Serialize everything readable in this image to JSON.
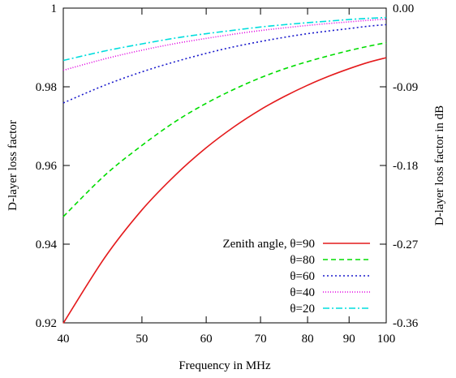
{
  "chart_data": {
    "type": "line",
    "xlabel": "Frequency in MHz",
    "ylabel": "D-layer loss factor",
    "y2label": "D-layer loss factor in dB",
    "xscale": "log",
    "xlim": [
      40,
      100
    ],
    "ylim": [
      0.92,
      1.0
    ],
    "y2lim": [
      -0.36,
      0.0
    ],
    "xticks": [
      40,
      50,
      60,
      70,
      80,
      90,
      100
    ],
    "yticks": [
      0.92,
      0.94,
      0.96,
      0.98,
      1.0
    ],
    "ytick_labels": [
      "0.92",
      "0.94",
      "0.96",
      "0.98",
      "1"
    ],
    "y2ticks": [
      -0.36,
      -0.27,
      -0.18,
      -0.09,
      0.0
    ],
    "y2tick_labels": [
      "-0.36",
      "-0.27",
      "-0.18",
      "-0.09",
      "0.00"
    ],
    "grid": false,
    "legend_position": "bottom-right",
    "x": [
      40,
      45,
      50,
      55,
      60,
      65,
      70,
      75,
      80,
      85,
      90,
      95,
      100
    ],
    "series": [
      {
        "name": "Zenith angle, θ=90",
        "color": "#e41a1c",
        "dash": "solid",
        "values": [
          0.9199,
          0.9366,
          0.9487,
          0.9576,
          0.9645,
          0.9699,
          0.9742,
          0.9776,
          0.9804,
          0.9827,
          0.9846,
          0.9862,
          0.9874
        ]
      },
      {
        "name": "θ=80",
        "color": "#00dd00",
        "dash": "dashed",
        "values": [
          0.947,
          0.9575,
          0.9651,
          0.9712,
          0.9758,
          0.9794,
          0.9823,
          0.9846,
          0.9864,
          0.9879,
          0.9892,
          0.9903,
          0.9912
        ]
      },
      {
        "name": "θ=60",
        "color": "#1a1acc",
        "dash": "dotted",
        "values": [
          0.9759,
          0.9804,
          0.9838,
          0.9864,
          0.9885,
          0.9902,
          0.9915,
          0.9926,
          0.9935,
          0.9942,
          0.9948,
          0.9954,
          0.9958
        ]
      },
      {
        "name": "θ=40",
        "color": "#e000e0",
        "dash": "dense-dotted",
        "values": [
          0.9842,
          0.9871,
          0.9893,
          0.991,
          0.9923,
          0.9934,
          0.9943,
          0.995,
          0.9956,
          0.9961,
          0.9965,
          0.9969,
          0.9972
        ]
      },
      {
        "name": "θ=20",
        "color": "#00dddd",
        "dash": "dash-dot",
        "values": [
          0.9867,
          0.9891,
          0.9909,
          0.9924,
          0.9935,
          0.9944,
          0.9952,
          0.9958,
          0.9963,
          0.9967,
          0.9971,
          0.9974,
          0.9976
        ]
      }
    ]
  }
}
